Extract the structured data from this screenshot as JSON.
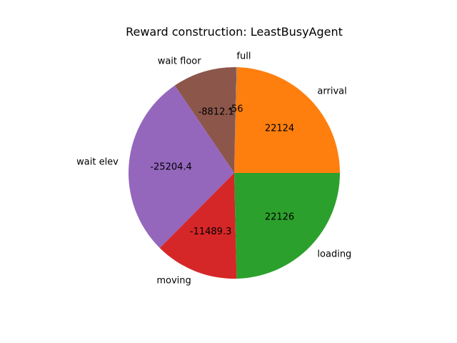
{
  "chart_data": {
    "type": "pie",
    "title": "Reward construction: LeastBusyAgent",
    "slices": [
      {
        "label": "arrival",
        "value": 22124,
        "display": "22124",
        "color": "#ff7f0e"
      },
      {
        "label": "full",
        "value": -56,
        "display": "-56",
        "color": "#1f77b4"
      },
      {
        "label": "wait floor",
        "value": -8812.1,
        "display": "-8812.1",
        "color": "#8c564b"
      },
      {
        "label": "wait elev",
        "value": -25204.4,
        "display": "-25204.4",
        "color": "#9467bd"
      },
      {
        "label": "moving",
        "value": -11489.3,
        "display": "-11489.3",
        "color": "#d62728"
      },
      {
        "label": "loading",
        "value": 22126,
        "display": "22126",
        "color": "#2ca02c"
      }
    ]
  }
}
